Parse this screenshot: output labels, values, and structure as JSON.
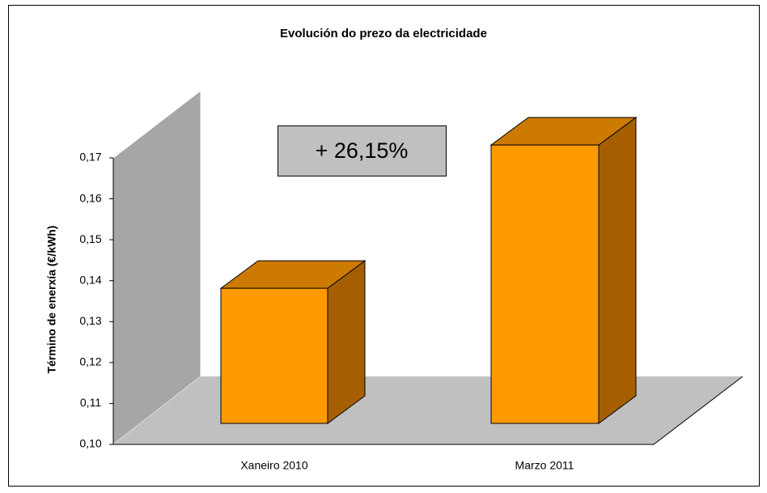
{
  "chart_data": {
    "type": "bar3d",
    "title": "Evolución  do prezo da electricidade",
    "y_label": "Término de enerxía (€/kWh)",
    "categories": [
      "Xaneiro 2010",
      "Marzo  2011"
    ],
    "values": [
      0.133,
      0.168
    ],
    "color": "#ff9900",
    "annotation": "+ 26,15%",
    "ylim": [
      0.1,
      0.17
    ],
    "yticks": [
      {
        "value": 0.1,
        "label": "0,10"
      },
      {
        "value": 0.11,
        "label": "0,11"
      },
      {
        "value": 0.12,
        "label": "0,12"
      },
      {
        "value": 0.13,
        "label": "0,13"
      },
      {
        "value": 0.14,
        "label": "0,14"
      },
      {
        "value": 0.15,
        "label": "0,15"
      },
      {
        "value": 0.16,
        "label": "0,16"
      },
      {
        "value": 0.17,
        "label": "0,17"
      }
    ]
  }
}
